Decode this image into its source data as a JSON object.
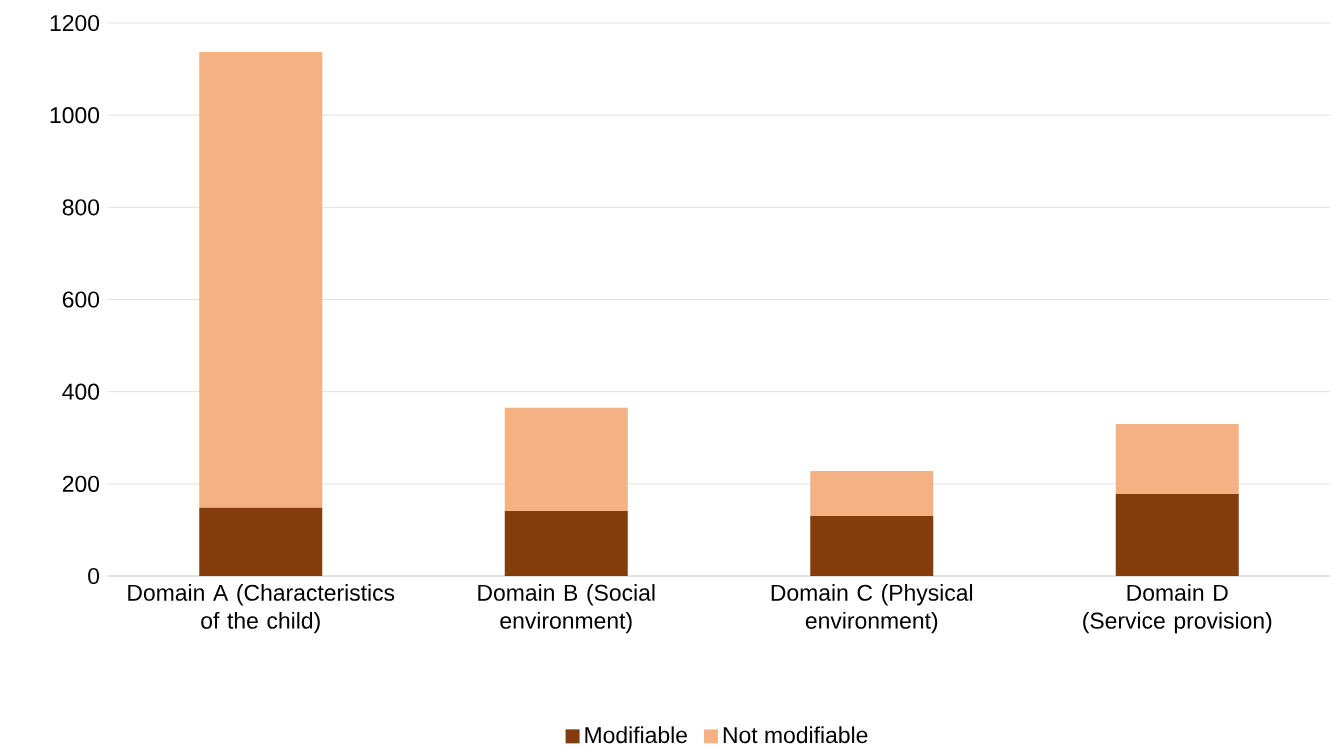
{
  "chart_data": {
    "type": "bar",
    "stacked": true,
    "categories": [
      "Domain A (Characteristics of the child)",
      "Domain B (Social environment)",
      "Domain C (Physical environment)",
      "Domain D (Service provision)"
    ],
    "series": [
      {
        "name": "Modifiable",
        "color": "#843c0c",
        "values": [
          148,
          141,
          130,
          178
        ]
      },
      {
        "name": "Not modifiable",
        "color": "#f4b183",
        "values": [
          989,
          224,
          98,
          152
        ]
      }
    ],
    "ylim": [
      0,
      1200
    ],
    "yticks": [
      0,
      200,
      400,
      600,
      800,
      1000,
      1200
    ],
    "grid": "y",
    "legend": "bottom"
  }
}
